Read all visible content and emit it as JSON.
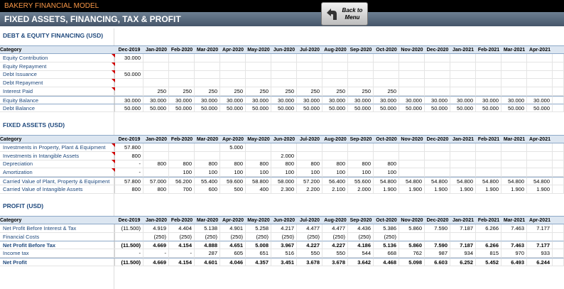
{
  "header": {
    "app_title": "BAKERY FINANCIAL MODEL",
    "page_title": "FIXED ASSETS, FINANCING, TAX & PROFIT",
    "button": "Back to Menu"
  },
  "months": [
    "Dec-2019",
    "Jan-2020",
    "Feb-2020",
    "Mar-2020",
    "Apr-2020",
    "May-2020",
    "Jun-2020",
    "Jul-2020",
    "Aug-2020",
    "Sep-2020",
    "Oct-2020",
    "Nov-2020",
    "Dec-2020",
    "Jan-2021",
    "Feb-2021",
    "Mar-2021",
    "Apr-2021"
  ],
  "sections": [
    {
      "title": "DEBT & EQUITY FINANCING (USD)",
      "column_header": "Category",
      "rows": [
        {
          "label": "Equity Contribution",
          "cells": [
            "30.000",
            null,
            null,
            null,
            null,
            null,
            null,
            null,
            null,
            null,
            null,
            null,
            null,
            null,
            null,
            null,
            null
          ]
        },
        {
          "label": "Equity Repayment",
          "cells": [
            null,
            null,
            null,
            null,
            null,
            null,
            null,
            null,
            null,
            null,
            null,
            null,
            null,
            null,
            null,
            null,
            null
          ]
        },
        {
          "label": "Debt Issuance",
          "cells": [
            "50.000",
            null,
            null,
            null,
            null,
            null,
            null,
            null,
            null,
            null,
            null,
            null,
            null,
            null,
            null,
            null,
            null
          ]
        },
        {
          "label": "Debt Repayment",
          "cells": [
            null,
            null,
            null,
            null,
            null,
            null,
            null,
            null,
            null,
            null,
            null,
            null,
            null,
            null,
            null,
            null,
            null
          ]
        },
        {
          "label": "Interest Paid",
          "cells": [
            null,
            "250",
            "250",
            "250",
            "250",
            "250",
            "250",
            "250",
            "250",
            "250",
            "250",
            null,
            null,
            null,
            null,
            null,
            null
          ]
        },
        {
          "label": "Equity Balance",
          "cells": [
            "30.000",
            "30.000",
            "30.000",
            "30.000",
            "30.000",
            "30.000",
            "30.000",
            "30.000",
            "30.000",
            "30.000",
            "30.000",
            "30.000",
            "30.000",
            "30.000",
            "30.000",
            "30.000",
            "30.000"
          ]
        },
        {
          "label": "Debt Balance",
          "cells": [
            "50.000",
            "50.000",
            "50.000",
            "50.000",
            "50.000",
            "50.000",
            "50.000",
            "50.000",
            "50.000",
            "50.000",
            "50.000",
            "50.000",
            "50.000",
            "50.000",
            "50.000",
            "50.000",
            "50.000"
          ]
        }
      ]
    },
    {
      "title": "FIXED ASSETS (USD)",
      "column_header": "Category",
      "rows": [
        {
          "label": "Investments in Property, Plant & Equipment",
          "cells": [
            "57.800",
            null,
            null,
            null,
            "5.000",
            null,
            null,
            null,
            null,
            null,
            null,
            null,
            null,
            null,
            null,
            null,
            null
          ]
        },
        {
          "label": "Investments in Intangible Assets",
          "cells": [
            "800",
            null,
            null,
            null,
            null,
            null,
            "2.000",
            null,
            null,
            null,
            null,
            null,
            null,
            null,
            null,
            null,
            null
          ]
        },
        {
          "label": "Depreciation",
          "cells": [
            "-",
            "800",
            "800",
            "800",
            "800",
            "800",
            "800",
            "800",
            "800",
            "800",
            "800",
            null,
            null,
            null,
            null,
            null,
            null
          ]
        },
        {
          "label": "Amortization",
          "cells": [
            "-",
            null,
            "100",
            "100",
            "100",
            "100",
            "100",
            "100",
            "100",
            "100",
            "100",
            null,
            null,
            null,
            null,
            null,
            null
          ]
        },
        {
          "label": "Carried Value of Plant, Property & Equipment",
          "cells": [
            "57.800",
            "57.000",
            "56.200",
            "55.400",
            "59.600",
            "58.800",
            "58.000",
            "57.200",
            "56.400",
            "55.600",
            "54.800",
            "54.800",
            "54.800",
            "54.800",
            "54.800",
            "54.800",
            "54.800"
          ]
        },
        {
          "label": "Carried Value of Intangible Assets",
          "cells": [
            "800",
            "800",
            "700",
            "600",
            "500",
            "400",
            "2.300",
            "2.200",
            "2.100",
            "2.000",
            "1.900",
            "1.900",
            "1.900",
            "1.900",
            "1.900",
            "1.900",
            "1.900"
          ]
        }
      ]
    },
    {
      "title": "PROFIT (USD)",
      "column_header": "Category",
      "rows": [
        {
          "label": "Net Profit Before Interest & Tax",
          "cells": [
            "(11.500)",
            "4.919",
            "4.404",
            "5.138",
            "4.901",
            "5.258",
            "4.217",
            "4.477",
            "4.477",
            "4.436",
            "5.386",
            "5.860",
            "7.590",
            "7.187",
            "6.266",
            "7.463",
            "7.177"
          ]
        },
        {
          "label": "Financial Costs",
          "cells": [
            null,
            "(250)",
            "(250)",
            "(250)",
            "(250)",
            "(250)",
            "(250)",
            "(250)",
            "(250)",
            "(250)",
            "(250)",
            null,
            null,
            null,
            null,
            null,
            null
          ]
        },
        {
          "label": "Net Profit Before Tax",
          "cells": [
            "(11.500)",
            "4.669",
            "4.154",
            "4.888",
            "4.651",
            "5.008",
            "3.967",
            "4.227",
            "4.227",
            "4.186",
            "5.136",
            "5.860",
            "7.590",
            "7.187",
            "6.266",
            "7.463",
            "7.177"
          ]
        },
        {
          "label": "Income tax",
          "cells": [
            "-",
            "-",
            "-",
            "287",
            "605",
            "651",
            "516",
            "550",
            "550",
            "544",
            "668",
            "762",
            "987",
            "934",
            "815",
            "970",
            "933"
          ]
        },
        {
          "label": "Net Profit",
          "cells": [
            "(11.500)",
            "4.669",
            "4.154",
            "4.601",
            "4.046",
            "4.357",
            "3.451",
            "3.678",
            "3.678",
            "3.642",
            "4.468",
            "5.098",
            "6.603",
            "6.252",
            "5.452",
            "6.493",
            "6.244"
          ]
        }
      ]
    }
  ]
}
